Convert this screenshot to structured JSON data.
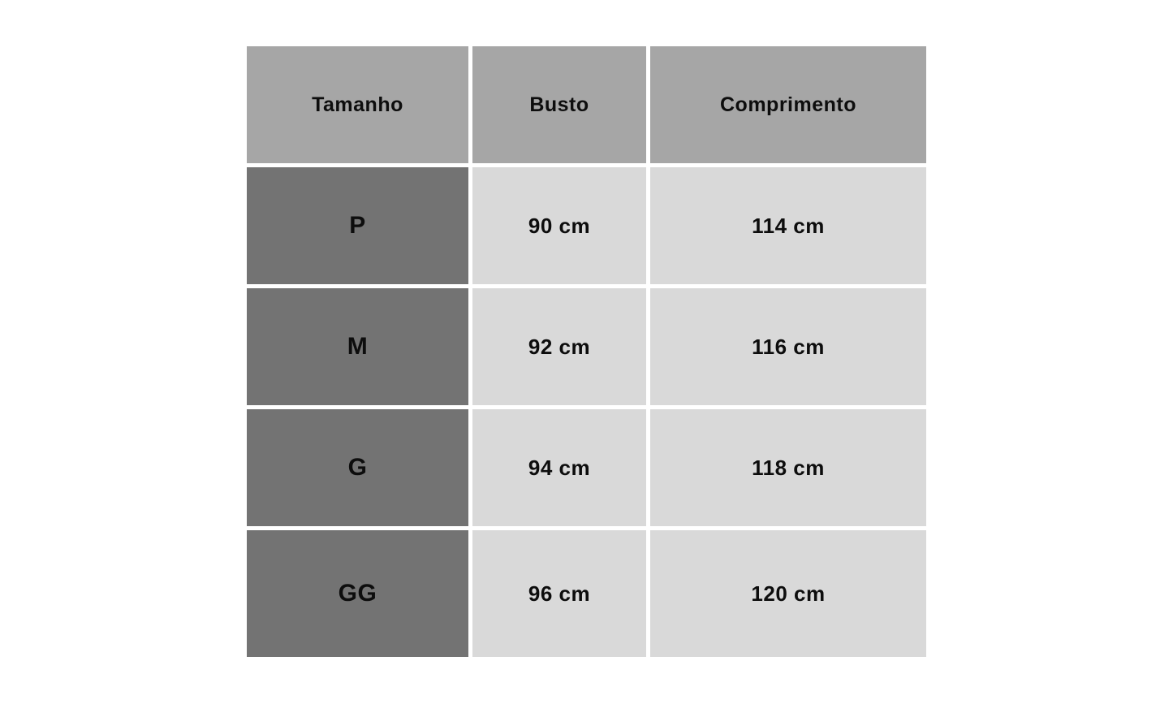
{
  "chart_data": {
    "type": "table",
    "columns": [
      "Tamanho",
      "Busto",
      "Comprimento"
    ],
    "rows": [
      [
        "P",
        "90 cm",
        "114 cm"
      ],
      [
        "M",
        "92 cm",
        "116 cm"
      ],
      [
        "G",
        "94 cm",
        "118 cm"
      ],
      [
        "GG",
        "96 cm",
        "120 cm"
      ]
    ]
  },
  "colors": {
    "page_bg": "#ffffff",
    "header_bg": "#a6a6a6",
    "size_col_bg": "#737373",
    "value_cell_bg": "#d9d9d9",
    "text": "#0d0d0d"
  }
}
